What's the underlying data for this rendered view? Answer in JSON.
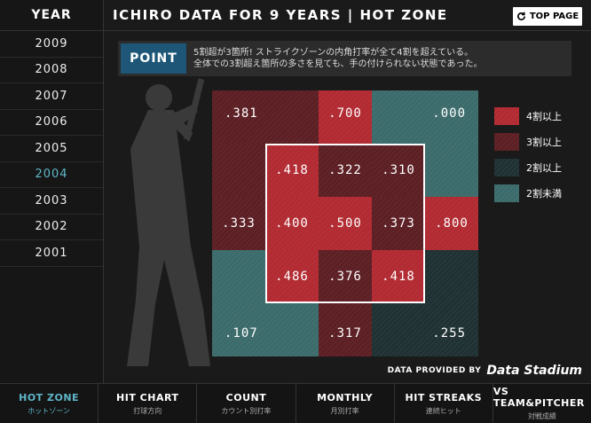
{
  "sidebar": {
    "header": "YEAR",
    "years": [
      "2009",
      "2008",
      "2007",
      "2006",
      "2005",
      "2004",
      "2003",
      "2002",
      "2001"
    ],
    "active_year": "2004"
  },
  "header": {
    "title": "ICHIRO DATA FOR 9 YEARS  |  HOT ZONE",
    "top_page_label": "TOP PAGE"
  },
  "point": {
    "label": "POINT",
    "line1": "5割超が3箇所! ストライクゾーンの内角打率が全て4割を超えている。",
    "line2": "全体での3割超え箇所の多さを見ても、手の付けられない状態であった。"
  },
  "zones": {
    "outer_top_left": ".381",
    "outer_top_mid": ".700",
    "outer_top_right": ".000",
    "inner_1": ".418",
    "inner_2": ".322",
    "inner_3": ".310",
    "outer_mid_left": ".333",
    "inner_4": ".400",
    "inner_5": ".500",
    "inner_6": ".373",
    "outer_mid_right": ".800",
    "inner_7": ".486",
    "inner_8": ".376",
    "inner_9": ".418",
    "outer_bot_left": ".107",
    "outer_bot_mid": ".317",
    "outer_bot_right": ".255"
  },
  "legend": [
    {
      "label": "4割以上",
      "color": "#b22a32"
    },
    {
      "label": "3割以上",
      "color": "#5c1f24"
    },
    {
      "label": "2割以上",
      "color": "#1f3133"
    },
    {
      "label": "2割未満",
      "color": "#3c6b6b"
    }
  ],
  "credit": {
    "text": "DATA PROVIDED BY",
    "logo": "Data Stadium"
  },
  "nav": [
    {
      "label": "HOT ZONE",
      "sub": "ホットゾーン"
    },
    {
      "label": "HIT CHART",
      "sub": "打球方向"
    },
    {
      "label": "COUNT",
      "sub": "カウント別打率"
    },
    {
      "label": "MONTHLY",
      "sub": "月別打率"
    },
    {
      "label": "HIT STREAKS",
      "sub": "連続ヒット"
    },
    {
      "label": "VS TEAM&PITCHER",
      "sub": "対戦成績"
    }
  ]
}
